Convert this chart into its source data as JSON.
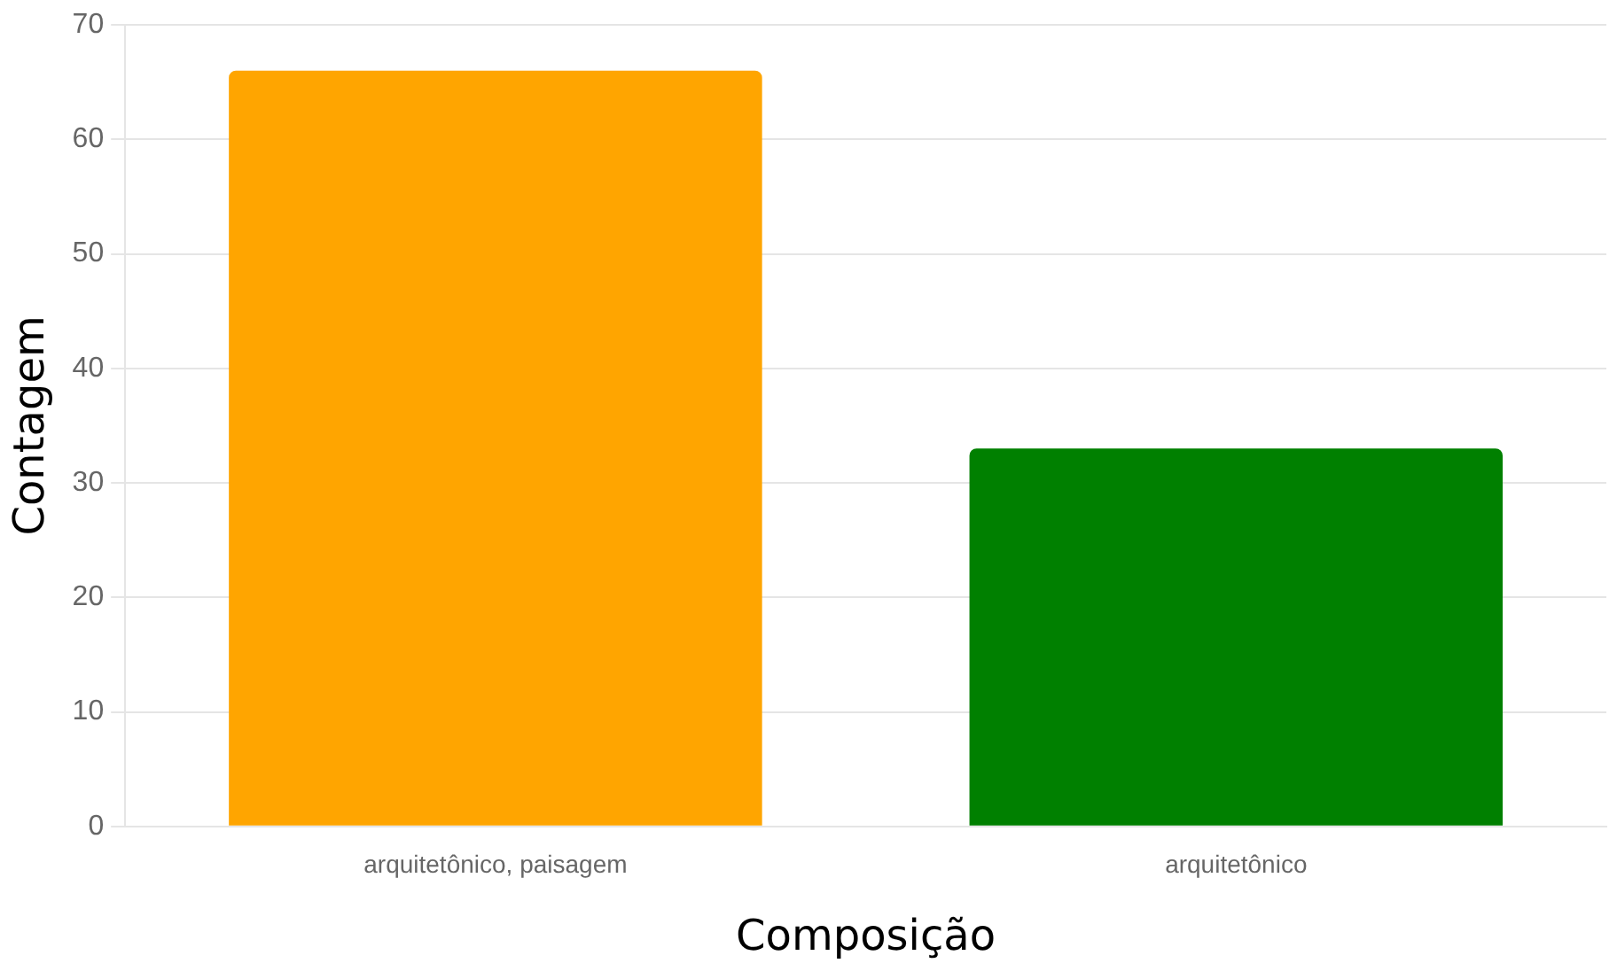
{
  "chart_data": {
    "type": "bar",
    "xlabel": "Composição",
    "ylabel": "Contagem",
    "categories": [
      "arquitetônico, paisagem",
      "arquitetônico"
    ],
    "values": [
      66,
      33
    ],
    "colors": [
      "#ffa500",
      "#008000"
    ],
    "ylim": [
      0,
      70
    ],
    "yticks": [
      0,
      10,
      20,
      30,
      40,
      50,
      60,
      70
    ],
    "grid": "y",
    "legend": false
  }
}
